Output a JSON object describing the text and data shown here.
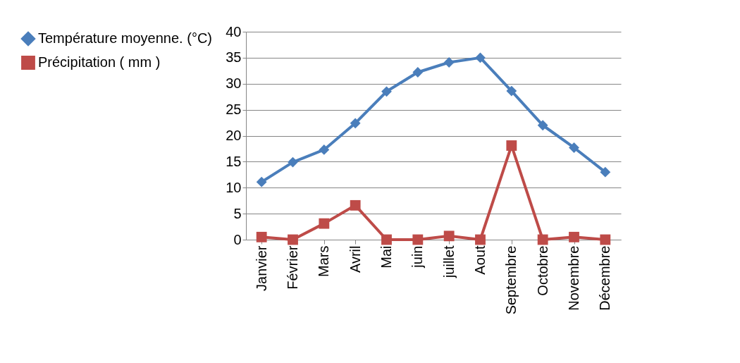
{
  "chart_data": {
    "type": "line",
    "categories": [
      "Janvier",
      "Février",
      "Mars",
      "Avril",
      "Mai",
      "juin",
      "juillet",
      "Aout",
      "Septembre",
      "Octobre",
      "Novembre",
      "Décembre"
    ],
    "series": [
      {
        "name": "Température moyenne. (°C)",
        "color": "#4a7ebb",
        "marker": "diamond",
        "values": [
          11.1,
          14.9,
          17.3,
          22.4,
          28.5,
          32.2,
          34.1,
          35,
          28.6,
          22,
          17.7,
          13
        ]
      },
      {
        "name": "Précipitation ( mm )",
        "color": "#be4b48",
        "marker": "square",
        "values": [
          0.5,
          0,
          3.1,
          6.6,
          0,
          0,
          0.7,
          0,
          18.1,
          0,
          0.5,
          0
        ]
      }
    ],
    "ylim": [
      0,
      40
    ],
    "yticks": [
      0,
      5,
      10,
      15,
      20,
      25,
      30,
      35,
      40
    ],
    "grid": "y",
    "legend": "left",
    "line_style": "solid"
  }
}
